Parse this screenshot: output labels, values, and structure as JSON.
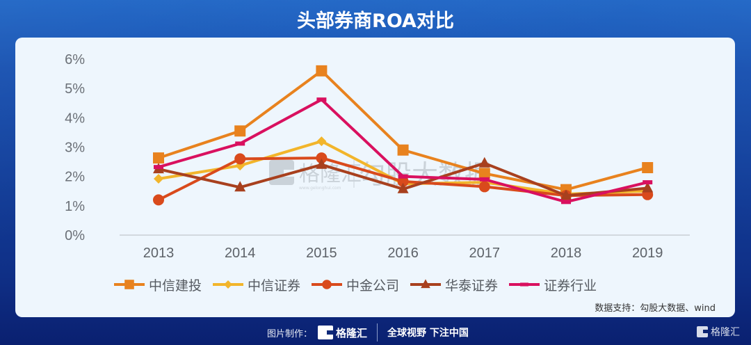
{
  "header": {
    "title": "头部券商ROA对比"
  },
  "chart_data": {
    "type": "line",
    "title": "头部券商ROA对比",
    "xlabel": "",
    "ylabel": "",
    "categories": [
      "2013",
      "2014",
      "2015",
      "2016",
      "2017",
      "2018",
      "2019"
    ],
    "yticks": [
      "0%",
      "1%",
      "2%",
      "3%",
      "4%",
      "5%",
      "6%"
    ],
    "ylim": [
      0,
      6
    ],
    "grid": false,
    "legend_position": "bottom",
    "series": [
      {
        "name": "中信建投",
        "marker": "square",
        "color": "#e8821e",
        "values": [
          2.63,
          3.55,
          5.6,
          2.9,
          2.1,
          1.55,
          2.3
        ]
      },
      {
        "name": "中信证券",
        "marker": "diamond",
        "color": "#f2b52b",
        "values": [
          1.92,
          2.37,
          3.2,
          1.75,
          1.8,
          1.4,
          1.5
        ]
      },
      {
        "name": "中金公司",
        "marker": "circle",
        "color": "#d94a1c",
        "values": [
          1.2,
          2.6,
          2.63,
          1.83,
          1.65,
          1.35,
          1.38
        ]
      },
      {
        "name": "华泰证券",
        "marker": "triangle",
        "color": "#a8401e",
        "values": [
          2.25,
          1.63,
          2.4,
          1.57,
          2.45,
          1.35,
          1.6
        ]
      },
      {
        "name": "证券行业",
        "marker": "dash",
        "color": "#d9105f",
        "values": [
          2.32,
          3.12,
          4.62,
          2.0,
          1.9,
          1.13,
          1.8
        ]
      }
    ]
  },
  "watermark": {
    "brand": "格隆汇",
    "url": "www.gelonghui.com",
    "partner": "勾股大数据"
  },
  "source": "数据支持：勾股大数据、wind",
  "footer": {
    "made_by_label": "图片制作：",
    "brand": "格隆汇",
    "brand_url": "www.gelonghui.com",
    "slogan": "全球视野 下注中国",
    "corner_brand": "格隆汇"
  }
}
